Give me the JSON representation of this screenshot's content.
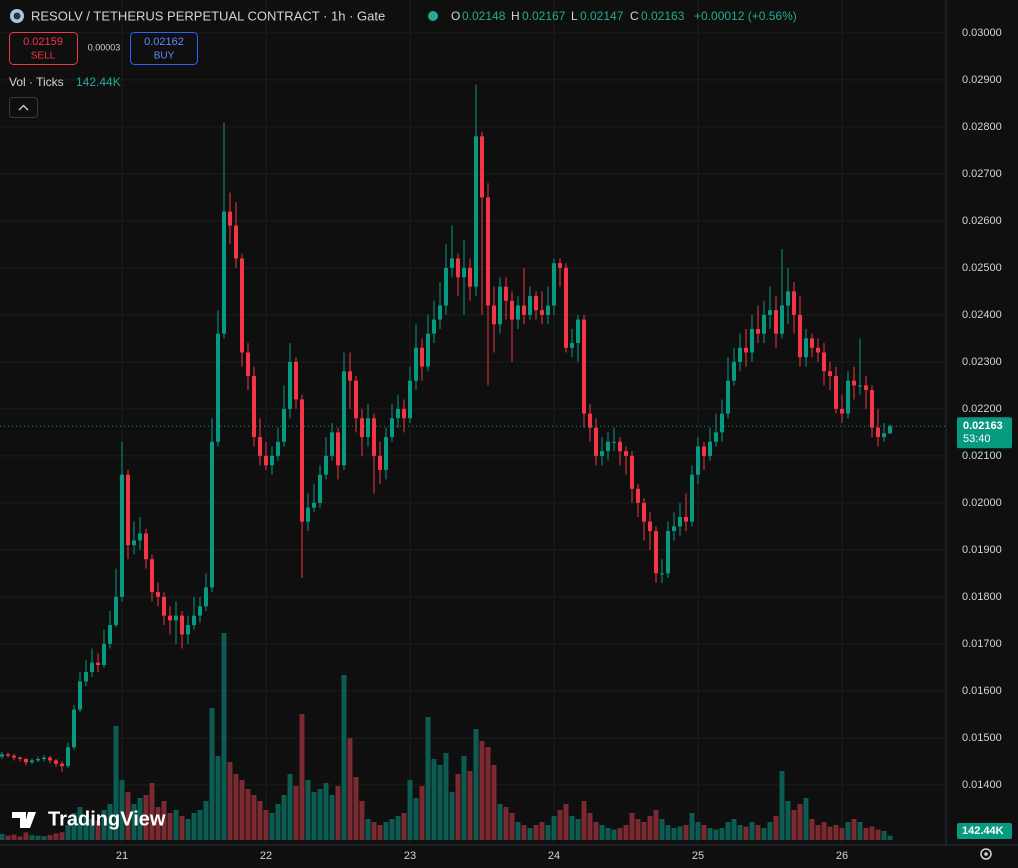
{
  "chart_data": {
    "type": "candlestick",
    "title": "RESOLV / TETHERUS PERPETUAL CONTRACT · 1h · Gate",
    "ohlc_letters": {
      "open": "O",
      "high": "H",
      "low": "L",
      "close": "C"
    },
    "change": "+0.00012 (+0.56%)",
    "sell": {
      "price": "0.02159",
      "label": "SELL"
    },
    "spread": "0.00003",
    "buy": {
      "price": "0.02162",
      "label": "BUY"
    },
    "volume_title": "Vol · Ticks",
    "volume_last_label": "142.44K",
    "countdown": "53:40",
    "watermark": "TradingView",
    "up_color": "#089981",
    "down_color": "#f23645",
    "volume_up_color": "#0d5c53",
    "volume_down_color": "#7a2a30",
    "grid": true,
    "ylim": [
      0.01272,
      0.0307
    ],
    "yticks": [
      {
        "value": 0.014,
        "label": "0.01400"
      },
      {
        "value": 0.015,
        "label": "0.01500"
      },
      {
        "value": 0.016,
        "label": "0.01600"
      },
      {
        "value": 0.017,
        "label": "0.01700"
      },
      {
        "value": 0.018,
        "label": "0.01800"
      },
      {
        "value": 0.019,
        "label": "0.01900"
      },
      {
        "value": 0.02,
        "label": "0.02000"
      },
      {
        "value": 0.021,
        "label": "0.02100"
      },
      {
        "value": 0.022,
        "label": "0.02200"
      },
      {
        "value": 0.023,
        "label": "0.02300"
      },
      {
        "value": 0.024,
        "label": "0.02400"
      },
      {
        "value": 0.025,
        "label": "0.02500"
      },
      {
        "value": 0.026,
        "label": "0.02600"
      },
      {
        "value": 0.027,
        "label": "0.02700"
      },
      {
        "value": 0.028,
        "label": "0.02800"
      },
      {
        "value": 0.029,
        "label": "0.02900"
      },
      {
        "value": 0.03,
        "label": "0.03000"
      }
    ],
    "volume_lim": [
      0,
      8000000
    ],
    "categories": [
      null,
      null,
      null,
      null,
      null,
      null,
      null,
      null,
      null,
      null,
      null,
      null,
      null,
      null,
      null,
      null,
      null,
      null,
      null,
      null,
      "21",
      null,
      null,
      null,
      null,
      null,
      null,
      null,
      null,
      null,
      null,
      null,
      null,
      null,
      null,
      null,
      null,
      null,
      null,
      null,
      null,
      null,
      null,
      null,
      "22",
      null,
      null,
      null,
      null,
      null,
      null,
      null,
      null,
      null,
      null,
      null,
      null,
      null,
      null,
      null,
      null,
      null,
      null,
      null,
      null,
      null,
      null,
      null,
      "23",
      null,
      null,
      null,
      null,
      null,
      null,
      null,
      null,
      null,
      null,
      null,
      null,
      null,
      null,
      null,
      null,
      null,
      null,
      null,
      null,
      null,
      null,
      null,
      "24",
      null,
      null,
      null,
      null,
      null,
      null,
      null,
      null,
      null,
      null,
      null,
      null,
      null,
      null,
      null,
      null,
      null,
      null,
      null,
      null,
      null,
      null,
      null,
      "25",
      null,
      null,
      null,
      null,
      null,
      null,
      null,
      null,
      null,
      null,
      null,
      null,
      null,
      null,
      null,
      null,
      null,
      null,
      null,
      null,
      null,
      null,
      null,
      "26",
      null,
      null,
      null,
      null,
      null,
      null,
      null,
      null
    ],
    "open": [
      0.0146,
      0.01465,
      0.01462,
      0.01458,
      0.01455,
      0.01448,
      0.01452,
      0.01455,
      0.01458,
      0.01452,
      0.01445,
      0.0144,
      0.0148,
      0.0156,
      0.0162,
      0.0164,
      0.0166,
      0.01655,
      0.017,
      0.0174,
      0.018,
      0.0206,
      0.0191,
      0.0192,
      0.01935,
      0.0188,
      0.0181,
      0.018,
      0.0176,
      0.0175,
      0.0176,
      0.0172,
      0.0174,
      0.0176,
      0.0178,
      0.0182,
      0.0213,
      0.0236,
      0.0262,
      0.0259,
      0.0252,
      0.0232,
      0.0227,
      0.0214,
      0.021,
      0.0208,
      0.021,
      0.0213,
      0.022,
      0.023,
      0.0222,
      0.0196,
      0.0199,
      0.02,
      0.0206,
      0.021,
      0.0215,
      0.0208,
      0.0228,
      0.0226,
      0.0218,
      0.0214,
      0.0218,
      0.021,
      0.0207,
      0.0214,
      0.0218,
      0.022,
      0.0218,
      0.0226,
      0.0233,
      0.0229,
      0.0236,
      0.0239,
      0.0242,
      0.025,
      0.0252,
      0.0248,
      0.025,
      0.0246,
      0.0278,
      0.0265,
      0.0242,
      0.0238,
      0.0246,
      0.0243,
      0.0239,
      0.0242,
      0.024,
      0.0244,
      0.0241,
      0.024,
      0.0242,
      0.0251,
      0.025,
      0.0233,
      0.0234,
      0.0239,
      0.0219,
      0.0216,
      0.021,
      0.0211,
      0.0213,
      0.0213,
      0.0211,
      0.021,
      0.0203,
      0.02,
      0.0196,
      0.0194,
      0.0185,
      0.0185,
      0.0194,
      0.0195,
      0.0197,
      0.0196,
      0.0206,
      0.0212,
      0.021,
      0.0213,
      0.0215,
      0.0219,
      0.0226,
      0.023,
      0.0233,
      0.0232,
      0.0237,
      0.0236,
      0.024,
      0.0241,
      0.0236,
      0.0242,
      0.0245,
      0.024,
      0.0231,
      0.0235,
      0.0233,
      0.0232,
      0.0228,
      0.0227,
      0.022,
      0.0219,
      0.0226,
      0.0225,
      0.0225,
      0.0224,
      0.0216,
      0.0214,
      0.02148
    ],
    "high": [
      0.0147,
      0.01468,
      0.01466,
      0.0146,
      0.01458,
      0.01456,
      0.0146,
      0.01463,
      0.01462,
      0.01455,
      0.0145,
      0.0149,
      0.0157,
      0.0164,
      0.01665,
      0.0169,
      0.0168,
      0.0173,
      0.0177,
      0.0186,
      0.0213,
      0.0207,
      0.0196,
      0.0197,
      0.01945,
      0.0189,
      0.0183,
      0.0181,
      0.0178,
      0.0179,
      0.0177,
      0.0176,
      0.018,
      0.018,
      0.0185,
      0.0218,
      0.0241,
      0.0281,
      0.0266,
      0.0264,
      0.0253,
      0.0234,
      0.0229,
      0.0218,
      0.0213,
      0.0212,
      0.0216,
      0.0225,
      0.0234,
      0.0231,
      0.0223,
      0.0202,
      0.0204,
      0.0208,
      0.0214,
      0.0217,
      0.0216,
      0.0232,
      0.0232,
      0.0227,
      0.022,
      0.0221,
      0.0219,
      0.0213,
      0.0216,
      0.0221,
      0.0223,
      0.0222,
      0.0229,
      0.0238,
      0.0235,
      0.024,
      0.0243,
      0.0247,
      0.0255,
      0.0259,
      0.0253,
      0.0256,
      0.0252,
      0.0289,
      0.0279,
      0.0268,
      0.0246,
      0.0248,
      0.0248,
      0.0245,
      0.0244,
      0.025,
      0.0246,
      0.0245,
      0.0245,
      0.0246,
      0.0252,
      0.0252,
      0.0251,
      0.0237,
      0.024,
      0.024,
      0.0221,
      0.0218,
      0.0214,
      0.0215,
      0.0216,
      0.0214,
      0.0212,
      0.0211,
      0.0204,
      0.0201,
      0.0198,
      0.0195,
      0.0188,
      0.0196,
      0.0198,
      0.02,
      0.0202,
      0.0208,
      0.0214,
      0.0213,
      0.0216,
      0.0219,
      0.0222,
      0.0231,
      0.0233,
      0.0236,
      0.0237,
      0.024,
      0.0242,
      0.0243,
      0.0246,
      0.0244,
      0.0254,
      0.025,
      0.0247,
      0.0244,
      0.0237,
      0.0236,
      0.0235,
      0.0234,
      0.023,
      0.0229,
      0.0223,
      0.0228,
      0.0229,
      0.0235,
      0.0227,
      0.0225,
      0.022,
      0.0217,
      0.02167
    ],
    "low": [
      0.01455,
      0.01458,
      0.01452,
      0.0145,
      0.01442,
      0.01444,
      0.01448,
      0.0145,
      0.01446,
      0.01438,
      0.01428,
      0.01436,
      0.01475,
      0.01555,
      0.0161,
      0.0163,
      0.0164,
      0.0165,
      0.0169,
      0.01735,
      0.0179,
      0.0188,
      0.0189,
      0.019,
      0.0186,
      0.0179,
      0.0178,
      0.0174,
      0.0172,
      0.017,
      0.0169,
      0.017,
      0.0173,
      0.01745,
      0.0177,
      0.0181,
      0.0212,
      0.0235,
      0.0255,
      0.025,
      0.0229,
      0.0224,
      0.0212,
      0.0208,
      0.0207,
      0.0206,
      0.0209,
      0.0212,
      0.0218,
      0.022,
      0.0184,
      0.0194,
      0.0198,
      0.0199,
      0.0205,
      0.0209,
      0.0205,
      0.0207,
      0.022,
      0.0215,
      0.021,
      0.0212,
      0.0202,
      0.0204,
      0.0205,
      0.0213,
      0.0216,
      0.0215,
      0.0217,
      0.0224,
      0.0226,
      0.0228,
      0.0234,
      0.0237,
      0.024,
      0.0248,
      0.0244,
      0.024,
      0.0243,
      0.0244,
      0.024,
      0.0225,
      0.0232,
      0.0236,
      0.0239,
      0.023,
      0.0237,
      0.0238,
      0.0239,
      0.0239,
      0.0238,
      0.0238,
      0.024,
      0.0246,
      0.0232,
      0.0231,
      0.023,
      0.0216,
      0.0213,
      0.0208,
      0.0208,
      0.0209,
      0.0211,
      0.0208,
      0.0206,
      0.02,
      0.0197,
      0.0192,
      0.019,
      0.0183,
      0.0183,
      0.0184,
      0.0192,
      0.0193,
      0.0194,
      0.0195,
      0.0204,
      0.0207,
      0.0209,
      0.0212,
      0.0213,
      0.0218,
      0.0225,
      0.0228,
      0.0229,
      0.023,
      0.0234,
      0.0234,
      0.0237,
      0.0233,
      0.0235,
      0.0238,
      0.0236,
      0.0229,
      0.0229,
      0.0231,
      0.023,
      0.0225,
      0.0224,
      0.0219,
      0.0217,
      0.0218,
      0.0222,
      0.0223,
      0.022,
      0.0214,
      0.0212,
      0.0213,
      0.02147
    ],
    "close": [
      0.01465,
      0.01462,
      0.01458,
      0.01455,
      0.01448,
      0.01452,
      0.01455,
      0.01458,
      0.01452,
      0.01445,
      0.0144,
      0.0148,
      0.0156,
      0.0162,
      0.0164,
      0.0166,
      0.01655,
      0.017,
      0.0174,
      0.018,
      0.0206,
      0.0191,
      0.0192,
      0.01935,
      0.0188,
      0.0181,
      0.018,
      0.0176,
      0.0175,
      0.0176,
      0.0172,
      0.0174,
      0.0176,
      0.0178,
      0.0182,
      0.0213,
      0.0236,
      0.0262,
      0.0259,
      0.0252,
      0.0232,
      0.0227,
      0.0214,
      0.021,
      0.0208,
      0.021,
      0.0213,
      0.022,
      0.023,
      0.0222,
      0.0196,
      0.0199,
      0.02,
      0.0206,
      0.021,
      0.0215,
      0.0208,
      0.0228,
      0.0226,
      0.0218,
      0.0214,
      0.0218,
      0.021,
      0.0207,
      0.0214,
      0.0218,
      0.022,
      0.0218,
      0.0226,
      0.0233,
      0.0229,
      0.0236,
      0.0239,
      0.0242,
      0.025,
      0.0252,
      0.0248,
      0.025,
      0.0246,
      0.0278,
      0.0265,
      0.0242,
      0.0238,
      0.0246,
      0.0243,
      0.0239,
      0.0242,
      0.024,
      0.0244,
      0.0241,
      0.024,
      0.0242,
      0.0251,
      0.025,
      0.0233,
      0.0234,
      0.0239,
      0.0219,
      0.0216,
      0.021,
      0.0211,
      0.0213,
      0.0213,
      0.0211,
      0.021,
      0.0203,
      0.02,
      0.0196,
      0.0194,
      0.0185,
      0.0185,
      0.0194,
      0.0195,
      0.0197,
      0.0196,
      0.0206,
      0.0212,
      0.021,
      0.0213,
      0.0215,
      0.0219,
      0.0226,
      0.023,
      0.0233,
      0.0232,
      0.0237,
      0.0236,
      0.024,
      0.0241,
      0.0236,
      0.0242,
      0.0245,
      0.024,
      0.0231,
      0.0235,
      0.0233,
      0.0232,
      0.0228,
      0.0227,
      0.022,
      0.0219,
      0.0226,
      0.0225,
      0.0225,
      0.0224,
      0.0216,
      0.0214,
      0.02148,
      0.02163
    ],
    "volume": [
      200000,
      150000,
      180000,
      120000,
      250000,
      160000,
      140000,
      130000,
      170000,
      220000,
      260000,
      500000,
      900000,
      1100000,
      800000,
      700000,
      650000,
      1000000,
      1200000,
      3800000,
      2000000,
      1600000,
      1200000,
      1400000,
      1500000,
      1900000,
      1100000,
      1300000,
      900000,
      1000000,
      800000,
      700000,
      900000,
      1000000,
      1300000,
      4400000,
      2800000,
      6900000,
      2600000,
      2200000,
      2000000,
      1700000,
      1500000,
      1300000,
      1000000,
      900000,
      1200000,
      1500000,
      2200000,
      1800000,
      4200000,
      2000000,
      1600000,
      1700000,
      1900000,
      1500000,
      1800000,
      5500000,
      3400000,
      2100000,
      1300000,
      700000,
      600000,
      500000,
      600000,
      700000,
      800000,
      900000,
      2000000,
      1400000,
      1800000,
      4100000,
      2700000,
      2500000,
      2900000,
      1600000,
      2200000,
      2800000,
      2300000,
      3700000,
      3300000,
      3100000,
      2500000,
      1200000,
      1100000,
      900000,
      600000,
      500000,
      400000,
      500000,
      600000,
      500000,
      800000,
      1000000,
      1200000,
      800000,
      700000,
      1300000,
      900000,
      600000,
      500000,
      400000,
      350000,
      400000,
      500000,
      900000,
      700000,
      600000,
      800000,
      1000000,
      700000,
      500000,
      400000,
      450000,
      500000,
      900000,
      600000,
      500000,
      400000,
      350000,
      400000,
      600000,
      700000,
      500000,
      450000,
      600000,
      500000,
      400000,
      600000,
      800000,
      2300000,
      1300000,
      1000000,
      1200000,
      1400000,
      700000,
      500000,
      600000,
      450000,
      500000,
      400000,
      600000,
      700000,
      600000,
      400000,
      450000,
      350000,
      300000,
      142440
    ]
  }
}
